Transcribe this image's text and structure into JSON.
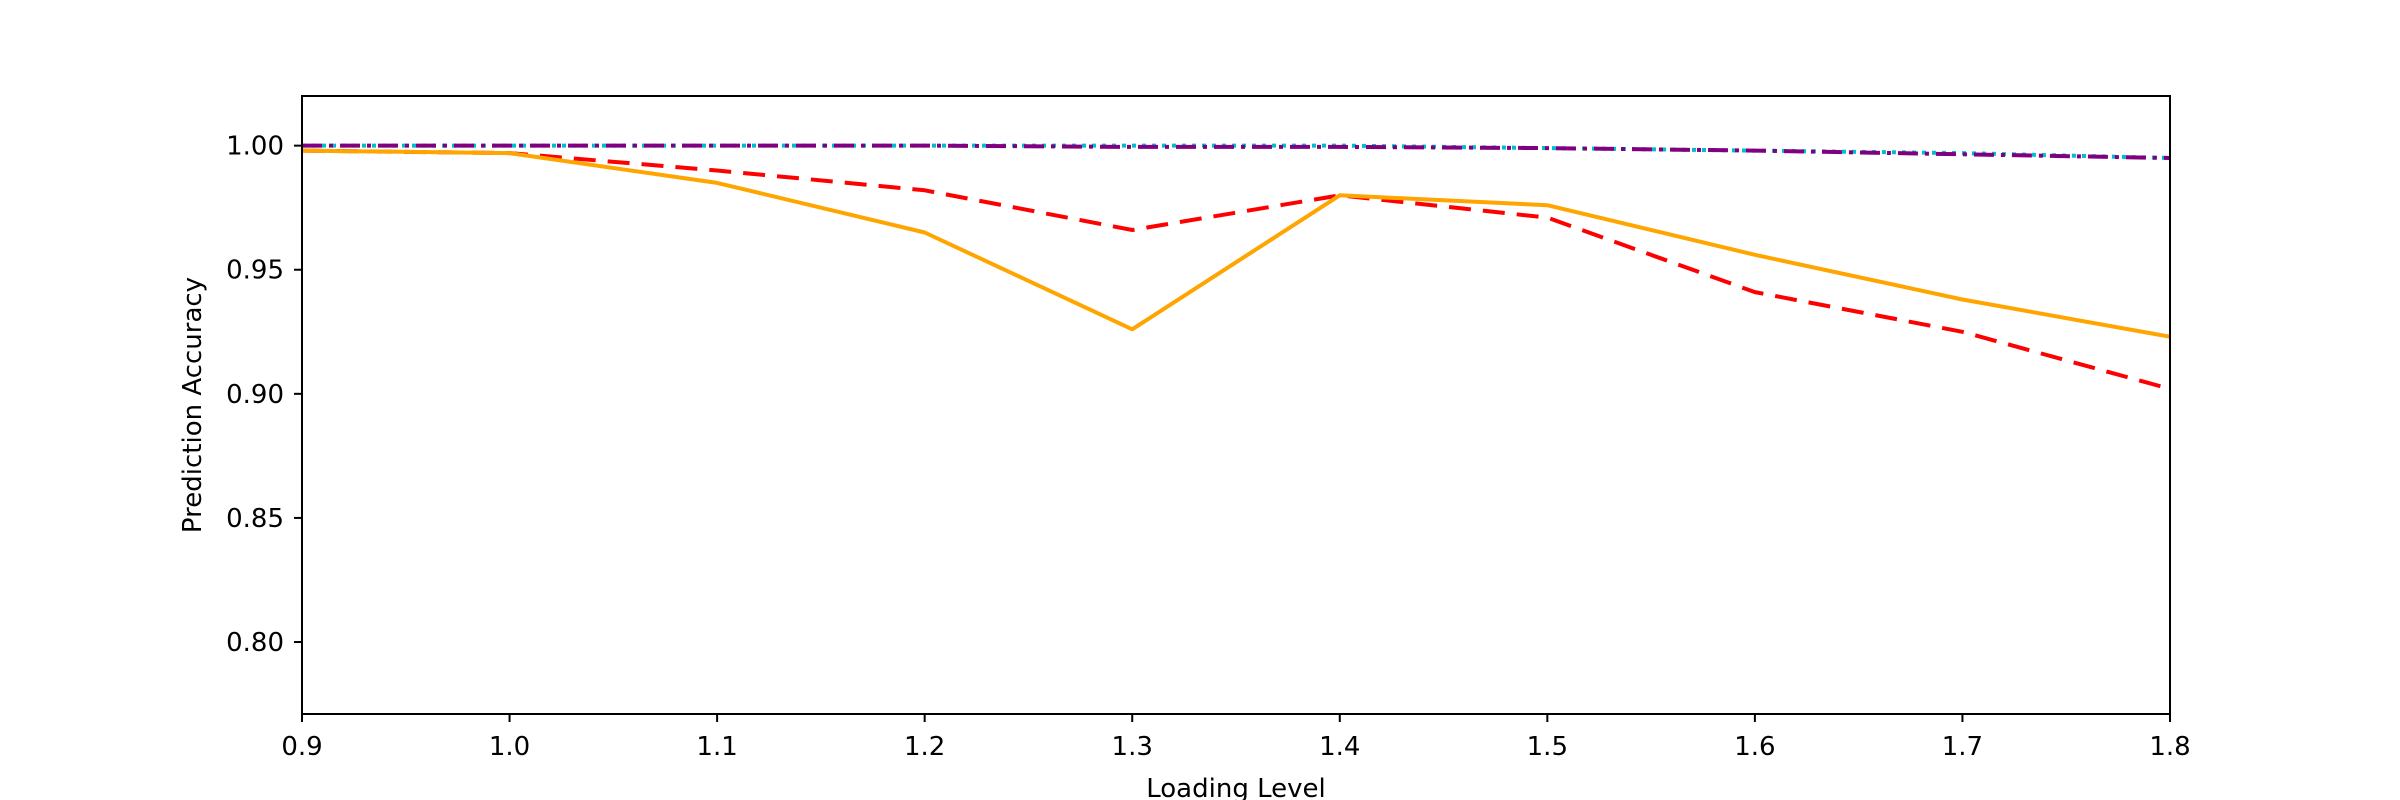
{
  "chart_data": {
    "type": "line",
    "title": "",
    "xlabel": "Loading Level",
    "ylabel": "Prediction Accuracy",
    "xlim": [
      0.9,
      1.8
    ],
    "ylim": [
      0.771,
      1.02
    ],
    "xticks": [
      0.9,
      1.0,
      1.1,
      1.2,
      1.3,
      1.4,
      1.5,
      1.6,
      1.7,
      1.8
    ],
    "xtick_labels": [
      "0.9",
      "1.0",
      "1.1",
      "1.2",
      "1.3",
      "1.4",
      "1.5",
      "1.6",
      "1.7",
      "1.8"
    ],
    "yticks": [
      0.8,
      0.85,
      0.9,
      0.95,
      1.0
    ],
    "ytick_labels": [
      "0.80",
      "0.85",
      "0.90",
      "0.95",
      "1.00"
    ],
    "grid": false,
    "legend": "none",
    "series": [
      {
        "color": "#00bcd4",
        "style": "dotted",
        "x": [
          0.9,
          1.0,
          1.1,
          1.2,
          1.3,
          1.4,
          1.5,
          1.6,
          1.7,
          1.8
        ],
        "values": [
          1.0,
          1.0,
          1.0,
          1.0,
          1.0,
          1.0,
          0.999,
          0.998,
          0.997,
          0.995
        ]
      },
      {
        "color": "#800080",
        "style": "dashdot",
        "x": [
          0.9,
          1.0,
          1.1,
          1.2,
          1.3,
          1.4,
          1.5,
          1.6,
          1.7,
          1.8
        ],
        "values": [
          1.0,
          1.0,
          1.0,
          1.0,
          0.9995,
          0.9995,
          0.999,
          0.998,
          0.9965,
          0.995
        ]
      },
      {
        "color": "#ff0000",
        "style": "dashed",
        "x": [
          0.9,
          1.0,
          1.1,
          1.2,
          1.3,
          1.4,
          1.5,
          1.6,
          1.7,
          1.8
        ],
        "values": [
          0.998,
          0.997,
          0.99,
          0.982,
          0.966,
          0.98,
          0.971,
          0.941,
          0.925,
          0.902
        ]
      },
      {
        "color": "#ffa500",
        "style": "solid",
        "x": [
          0.9,
          1.0,
          1.1,
          1.2,
          1.3,
          1.4,
          1.5,
          1.6,
          1.7,
          1.8
        ],
        "values": [
          0.998,
          0.997,
          0.985,
          0.965,
          0.926,
          0.98,
          0.976,
          0.956,
          0.938,
          0.923
        ]
      }
    ]
  }
}
